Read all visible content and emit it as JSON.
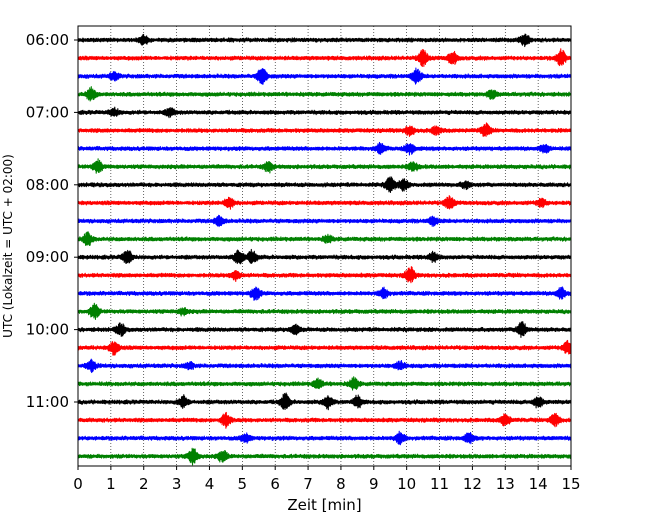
{
  "chart_data": {
    "type": "line",
    "title": "",
    "xlabel": "Zeit  [min]",
    "ylabel": "UTC (Lokalzeit = UTC + 02:00)",
    "xlim": [
      0,
      15
    ],
    "x_ticks": [
      0,
      1,
      2,
      3,
      4,
      5,
      6,
      7,
      8,
      9,
      10,
      11,
      12,
      13,
      14,
      15
    ],
    "grid": "vertical dotted",
    "y_tick_labels": [
      "06:00",
      "07:00",
      "08:00",
      "09:00",
      "10:00",
      "11:00"
    ],
    "trace_start_times": [
      "06:00",
      "06:15",
      "06:30",
      "06:45",
      "07:00",
      "07:15",
      "07:30",
      "07:45",
      "08:00",
      "08:15",
      "08:30",
      "08:45",
      "09:00",
      "09:15",
      "09:30",
      "09:45",
      "10:00",
      "10:15",
      "10:30",
      "10:45",
      "11:00",
      "11:15",
      "11:30",
      "11:45"
    ],
    "trace_colors": [
      "#000000",
      "#ff0000",
      "#0000ff",
      "#008000"
    ],
    "events": [
      [
        [
          2.0,
          0.6
        ],
        [
          13.6,
          0.7
        ]
      ],
      [
        [
          10.5,
          1.0
        ],
        [
          11.4,
          0.8
        ],
        [
          14.7,
          1.0
        ]
      ],
      [
        [
          5.6,
          1.0
        ],
        [
          10.3,
          0.9
        ],
        [
          1.1,
          0.5
        ]
      ],
      [
        [
          0.4,
          0.8
        ],
        [
          12.6,
          0.5
        ]
      ],
      [
        [
          1.1,
          0.5
        ],
        [
          2.8,
          0.5
        ]
      ],
      [
        [
          10.1,
          0.6
        ],
        [
          12.4,
          0.8
        ],
        [
          10.9,
          0.5
        ]
      ],
      [
        [
          9.2,
          0.6
        ],
        [
          10.1,
          0.7
        ],
        [
          14.2,
          0.5
        ]
      ],
      [
        [
          0.6,
          0.8
        ],
        [
          5.8,
          0.6
        ],
        [
          10.2,
          0.6
        ]
      ],
      [
        [
          9.5,
          1.0
        ],
        [
          9.9,
          0.7
        ],
        [
          11.8,
          0.4
        ]
      ],
      [
        [
          4.6,
          0.7
        ],
        [
          11.3,
          0.8
        ],
        [
          14.1,
          0.5
        ]
      ],
      [
        [
          4.3,
          0.6
        ],
        [
          10.8,
          0.5
        ]
      ],
      [
        [
          0.3,
          0.8
        ],
        [
          7.6,
          0.4
        ]
      ],
      [
        [
          1.5,
          0.9
        ],
        [
          4.9,
          1.0
        ],
        [
          5.3,
          0.8
        ],
        [
          10.8,
          0.6
        ]
      ],
      [
        [
          4.8,
          0.6
        ],
        [
          10.1,
          1.0
        ]
      ],
      [
        [
          5.4,
          0.8
        ],
        [
          9.3,
          0.6
        ],
        [
          14.7,
          0.7
        ]
      ],
      [
        [
          0.5,
          0.9
        ],
        [
          3.2,
          0.4
        ]
      ],
      [
        [
          1.3,
          0.7
        ],
        [
          6.6,
          0.6
        ],
        [
          13.5,
          1.0
        ]
      ],
      [
        [
          1.1,
          0.9
        ],
        [
          14.9,
          0.8
        ]
      ],
      [
        [
          0.4,
          0.7
        ],
        [
          3.4,
          0.4
        ],
        [
          9.8,
          0.5
        ]
      ],
      [
        [
          7.3,
          0.6
        ],
        [
          8.4,
          0.7
        ]
      ],
      [
        [
          3.2,
          0.7
        ],
        [
          6.3,
          1.0
        ],
        [
          7.6,
          0.8
        ],
        [
          8.5,
          0.7
        ],
        [
          14.0,
          0.7
        ]
      ],
      [
        [
          4.5,
          0.9
        ],
        [
          13.0,
          0.7
        ],
        [
          14.5,
          0.8
        ]
      ],
      [
        [
          5.1,
          0.5
        ],
        [
          9.8,
          0.7
        ],
        [
          11.9,
          0.6
        ]
      ],
      [
        [
          3.5,
          1.0
        ],
        [
          4.4,
          0.7
        ]
      ]
    ]
  }
}
